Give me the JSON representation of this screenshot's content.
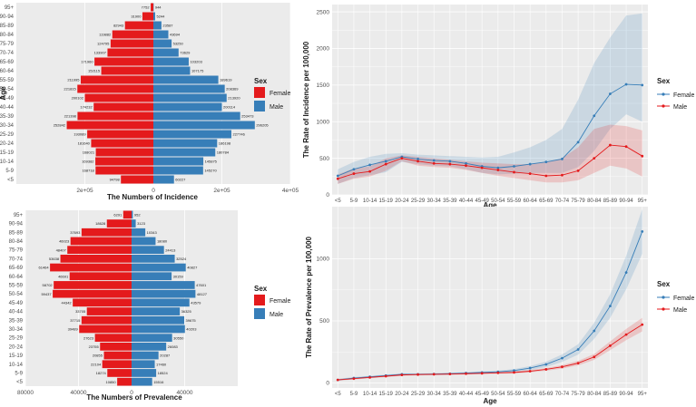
{
  "colors": {
    "female": "#e41a1c",
    "male": "#377eb8",
    "panel": "#ebebeb",
    "grid": "#ffffff",
    "axis": "#4d4d4d",
    "text": "#1a1a1a"
  },
  "age_groups": [
    "<5",
    "5-9",
    "10-14",
    "15-19",
    "20-24",
    "25-29",
    "30-34",
    "35-39",
    "40-44",
    "45-49",
    "50-54",
    "55-59",
    "60-64",
    "65-69",
    "70-74",
    "75-79",
    "80-84",
    "85-89",
    "90-94",
    "95+"
  ],
  "legend": {
    "title": "Sex",
    "female_label": "Female",
    "male_label": "Male"
  },
  "chart_data": [
    {
      "id": "incidence-pyramid",
      "type": "bar",
      "orientation": "horizontal-diverging",
      "xlabel": "The Numbers of Incidence",
      "ylabel": "Age",
      "xlim": [
        -400000,
        400000
      ],
      "x_ticks": [
        -200000,
        0,
        200000,
        400000
      ],
      "x_tick_labels": [
        "2e+05",
        "0",
        "2e+05",
        "4e+05"
      ],
      "series": [
        {
          "name": "Female",
          "values": [
            94798,
            168718,
            169382,
            168021,
            181640,
            193089,
            252842,
            221398,
            174232,
            200102,
            221815,
            211995,
            152115,
            171960,
            133907,
            124795,
            119882,
            82943,
            31900,
            7752
          ]
        },
        {
          "name": "Male",
          "values": [
            60227,
            145270,
            145875,
            180784,
            186198,
            227746,
            296205,
            253473,
            200114,
            213920,
            208369,
            189619,
            107175,
            103203,
            73629,
            53250,
            43694,
            23587,
            5244,
            944
          ]
        }
      ]
    },
    {
      "id": "incidence-rate",
      "type": "line",
      "xlabel": "Age",
      "ylabel": "The Rate of Incidence per 100,000",
      "ylim": [
        0,
        2600
      ],
      "y_ticks": [
        0,
        500,
        1000,
        1500,
        2000,
        2500
      ],
      "y_tick_labels": [
        "0",
        "500",
        "1000",
        "1500",
        "2000",
        "2500"
      ],
      "series": [
        {
          "name": "Female",
          "values": [
            260,
            350,
            410,
            460,
            520,
            490,
            470,
            460,
            430,
            390,
            370,
            390,
            420,
            450,
            490,
            720,
            1080,
            1380,
            1510,
            1500
          ],
          "lower": [
            150,
            230,
            270,
            310,
            450,
            420,
            400,
            390,
            350,
            300,
            280,
            290,
            300,
            300,
            300,
            380,
            600,
            900,
            1100,
            1000
          ],
          "upper": [
            350,
            450,
            520,
            560,
            570,
            550,
            540,
            530,
            520,
            510,
            520,
            580,
            650,
            750,
            900,
            1300,
            1800,
            2150,
            2450,
            2480
          ]
        },
        {
          "name": "Male",
          "values": [
            220,
            290,
            320,
            420,
            500,
            460,
            430,
            420,
            400,
            370,
            340,
            310,
            290,
            260,
            270,
            330,
            500,
            680,
            660,
            530
          ],
          "lower": [
            150,
            220,
            250,
            330,
            460,
            400,
            380,
            370,
            340,
            300,
            260,
            230,
            200,
            170,
            170,
            200,
            300,
            400,
            360,
            250
          ],
          "upper": [
            280,
            360,
            390,
            500,
            540,
            520,
            500,
            480,
            460,
            440,
            430,
            420,
            420,
            450,
            500,
            650,
            900,
            960,
            940,
            880
          ]
        }
      ]
    },
    {
      "id": "prevalence-pyramid",
      "type": "bar",
      "orientation": "horizontal-diverging",
      "xlabel": "The Numbers of Prevalence",
      "ylabel": "Age",
      "xlim": [
        -80000,
        80000
      ],
      "x_ticks": [
        -80000,
        -40000,
        0,
        40000
      ],
      "x_tick_labels": [
        "80000",
        "40000",
        "0",
        "40000"
      ],
      "series": [
        {
          "name": "Female",
          "values": [
            10850,
            18274,
            22104,
            20855,
            23755,
            27623,
            39489,
            37715,
            33705,
            44342,
            59437,
            58702,
            46691,
            61464,
            53638,
            48407,
            46023,
            37693,
            18628,
            6291
          ]
        },
        {
          "name": "Male",
          "values": [
            15516,
            18524,
            17460,
            20287,
            26083,
            30550,
            40203,
            39675,
            36325,
            43579,
            48127,
            47601,
            30159,
            40827,
            32524,
            24413,
            18080,
            10343,
            3123,
            952
          ]
        }
      ]
    },
    {
      "id": "prevalence-rate",
      "type": "line",
      "xlabel": "Age",
      "ylabel": "The Rate of Prevalence per 100,000",
      "ylim": [
        -40,
        1420
      ],
      "y_ticks": [
        0,
        500,
        1000
      ],
      "y_tick_labels": [
        "0",
        "500",
        "1000"
      ],
      "series": [
        {
          "name": "Female",
          "values": [
            25,
            40,
            50,
            60,
            70,
            70,
            72,
            75,
            80,
            85,
            90,
            100,
            120,
            150,
            200,
            270,
            420,
            620,
            890,
            1220
          ],
          "lower": [
            18,
            32,
            42,
            52,
            62,
            62,
            64,
            67,
            72,
            76,
            80,
            88,
            104,
            128,
            170,
            228,
            355,
            525,
            755,
            1040
          ],
          "upper": [
            32,
            48,
            58,
            68,
            78,
            78,
            80,
            83,
            88,
            94,
            100,
            112,
            136,
            172,
            230,
            312,
            485,
            715,
            1025,
            1400
          ]
        },
        {
          "name": "Male",
          "values": [
            25,
            35,
            45,
            55,
            65,
            68,
            70,
            72,
            75,
            78,
            82,
            85,
            95,
            110,
            130,
            160,
            210,
            300,
            390,
            470
          ],
          "lower": [
            18,
            28,
            38,
            48,
            58,
            61,
            63,
            65,
            68,
            71,
            74,
            77,
            86,
            99,
            116,
            142,
            186,
            265,
            345,
            415
          ],
          "upper": [
            32,
            42,
            52,
            62,
            72,
            75,
            77,
            79,
            82,
            85,
            90,
            93,
            104,
            121,
            144,
            178,
            234,
            335,
            435,
            525
          ]
        }
      ]
    }
  ]
}
